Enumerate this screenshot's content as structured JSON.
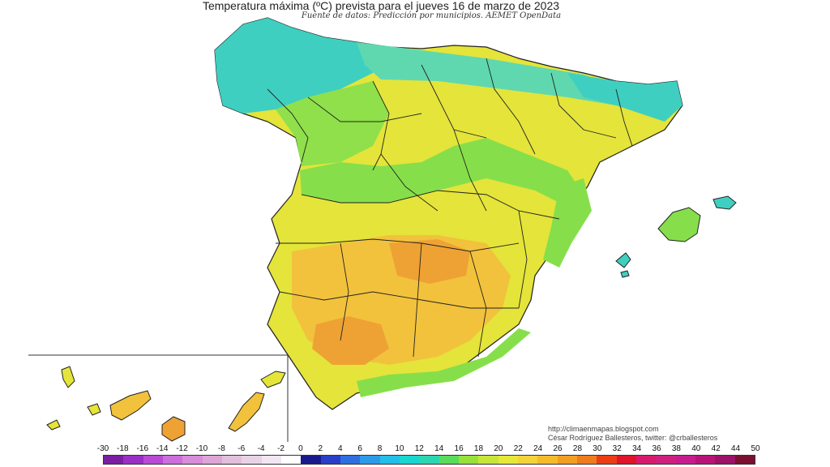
{
  "title": "Temperatura máxima (ºC) prevista para el jueves 16 de marzo de 2023",
  "subtitle": "Fuente de datos: Predicción por municipios. AEMET OpenData",
  "credits": {
    "url": "http://climaenmapas.blogspot.com",
    "author": "César Rodríguez Ballesteros, twitter: @crballesteros"
  },
  "legend": {
    "labels": [
      "-30",
      "-18",
      "-16",
      "-14",
      "-12",
      "-10",
      "-8",
      "-6",
      "-4",
      "-2",
      "0",
      "2",
      "4",
      "6",
      "8",
      "10",
      "12",
      "14",
      "16",
      "18",
      "20",
      "22",
      "24",
      "26",
      "28",
      "30",
      "32",
      "34",
      "36",
      "38",
      "40",
      "42",
      "44",
      "50"
    ],
    "colors": [
      "#7a1fa2",
      "#9a2fc4",
      "#b84ad6",
      "#cc6fdc",
      "#d78dd8",
      "#dda6d6",
      "#e2bfdc",
      "#e8d3e6",
      "#f1e6f1",
      "#ffffff",
      "#1a1a8c",
      "#2a3fc8",
      "#2f6fe0",
      "#2d9be8",
      "#22bfe8",
      "#1ad6d0",
      "#2bd6b0",
      "#59dc5a",
      "#98e03a",
      "#c6e63a",
      "#e6e838",
      "#f2d43a",
      "#f4bc2c",
      "#f29e22",
      "#ee7c1e",
      "#ea3d16",
      "#e0142a",
      "#d81a6e",
      "#d0207e",
      "#c81c8e",
      "#b81478",
      "#9c1266",
      "#7a1030"
    ]
  },
  "map_colors": {
    "cool": "#3fcfc0",
    "green": "#86df4a",
    "yellow_green": "#c9e63c",
    "yellow": "#e4e43a",
    "orange": "#f2c23c",
    "hot": "#eea234",
    "border": "#222222"
  }
}
